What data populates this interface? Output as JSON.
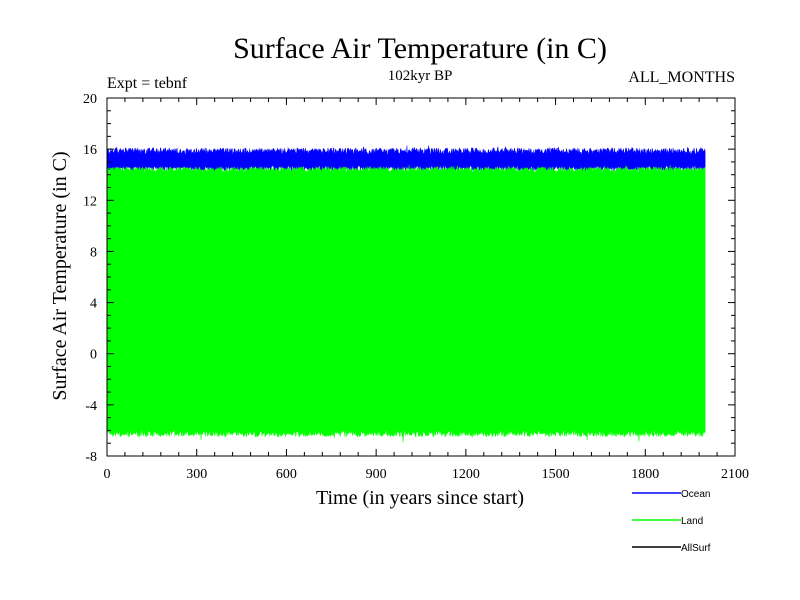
{
  "chart_data": {
    "type": "line",
    "title": "Surface Air Temperature (in C)",
    "subtitle": "102kyr BP",
    "experiment_label": "Expt = tebnf",
    "months_label": "ALL_MONTHS",
    "xlabel": "Time (in years since start)",
    "ylabel": "Surface Air Temperature (in C)",
    "xlim": [
      0,
      2100
    ],
    "ylim": [
      -8,
      20
    ],
    "xticks": [
      0,
      300,
      600,
      900,
      1200,
      1500,
      1800,
      2100
    ],
    "yticks": [
      -8,
      -4,
      0,
      4,
      8,
      12,
      16,
      20
    ],
    "x_range": [
      0,
      2000
    ],
    "series": [
      {
        "name": "Ocean",
        "color": "#0000ff",
        "mean": 15.3,
        "min": 14.3,
        "max": 16.1
      },
      {
        "name": "Land",
        "color": "#00ff00",
        "mean": 4.5,
        "min": -6.5,
        "max": 14.6
      },
      {
        "name": "AllSurf",
        "color": "#000000",
        "mean": null,
        "min": null,
        "max": null
      }
    ]
  }
}
